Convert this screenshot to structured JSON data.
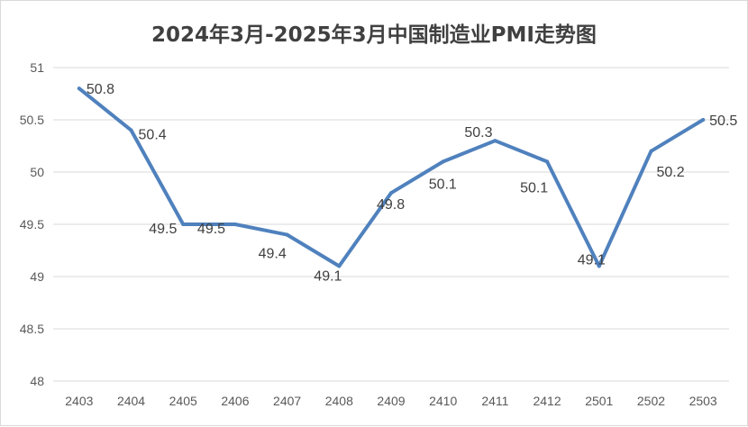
{
  "chart_data": {
    "type": "line",
    "title": "2024年3月-2025年3月中国制造业PMI走势图",
    "xlabel": "",
    "ylabel": "",
    "categories": [
      "2403",
      "2404",
      "2405",
      "2406",
      "2407",
      "2408",
      "2409",
      "2410",
      "2411",
      "2412",
      "2501",
      "2502",
      "2503"
    ],
    "series": [
      {
        "values": [
          50.8,
          50.4,
          49.5,
          49.5,
          49.4,
          49.1,
          49.8,
          50.1,
          50.3,
          50.1,
          49.1,
          50.2,
          50.5
        ]
      }
    ],
    "data_labels": [
      "50.8",
      "50.4",
      "49.5",
      "49.5",
      "49.4",
      "49.1",
      "49.8",
      "50.1",
      "50.3",
      "50.1",
      "49.1",
      "50.2",
      "50.5"
    ],
    "ylim": [
      48,
      51
    ],
    "yticks": [
      "48",
      "48.5",
      "49",
      "49.5",
      "50",
      "50.5",
      "51"
    ],
    "grid": true,
    "legend": "none",
    "colors": {
      "line": "#4f81bd",
      "grid": "#d9d9d9",
      "text": "#595959"
    }
  }
}
